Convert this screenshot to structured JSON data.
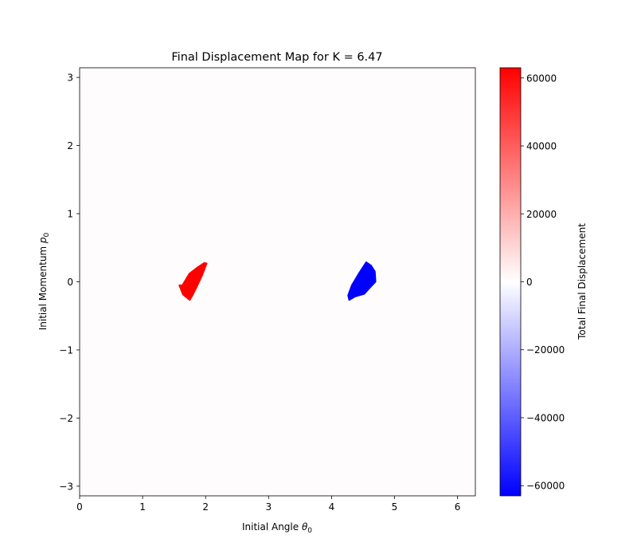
{
  "chart_data": {
    "type": "heatmap",
    "title": "Final Displacement Map for K = 6.47",
    "xlabel_main": "Initial Angle ",
    "xlabel_sym": "θ",
    "xlabel_sub": "0",
    "ylabel_main": "Initial Momentum ",
    "ylabel_sym": "p",
    "ylabel_sub": "0",
    "xlim": [
      0,
      6.2832
    ],
    "ylim": [
      -3.1416,
      3.1416
    ],
    "x_ticks": [
      0,
      1,
      2,
      3,
      4,
      5,
      6
    ],
    "x_tick_labels": [
      "0",
      "1",
      "2",
      "3",
      "4",
      "5",
      "6"
    ],
    "y_ticks": [
      -3,
      -2,
      -1,
      0,
      1,
      2,
      3
    ],
    "y_tick_labels": [
      "−3",
      "−2",
      "−1",
      "0",
      "1",
      "2",
      "3"
    ],
    "grid": false,
    "colormap": "bwr",
    "colorbar": {
      "label": "Total Final Displacement",
      "range": [
        -63000,
        63000
      ],
      "ticks": [
        -60000,
        -40000,
        -20000,
        0,
        20000,
        40000,
        60000
      ],
      "tick_labels": [
        "−60000",
        "−40000",
        "−20000",
        "0",
        "20000",
        "40000",
        "60000"
      ],
      "color_low": "#0000ff",
      "color_mid": "#ffffff",
      "color_high": "#ff0000"
    },
    "regions": [
      {
        "value": 62000,
        "color": "#ff0000",
        "polygon": [
          [
            1.63,
            -0.05
          ],
          [
            1.74,
            0.12
          ],
          [
            1.88,
            0.22
          ],
          [
            1.98,
            0.28
          ],
          [
            2.02,
            0.27
          ],
          [
            1.95,
            0.1
          ],
          [
            1.87,
            -0.06
          ],
          [
            1.8,
            -0.19
          ],
          [
            1.75,
            -0.27
          ],
          [
            1.64,
            -0.19
          ],
          [
            1.58,
            -0.05
          ]
        ]
      },
      {
        "value": -62000,
        "color": "#0000ff",
        "polygon": [
          [
            4.28,
            -0.27
          ],
          [
            4.37,
            -0.22
          ],
          [
            4.52,
            -0.18
          ],
          [
            4.62,
            -0.08
          ],
          [
            4.7,
            0.0
          ],
          [
            4.69,
            0.15
          ],
          [
            4.63,
            0.24
          ],
          [
            4.55,
            0.29
          ],
          [
            4.43,
            0.12
          ],
          [
            4.32,
            -0.05
          ],
          [
            4.26,
            -0.2
          ]
        ]
      }
    ]
  }
}
